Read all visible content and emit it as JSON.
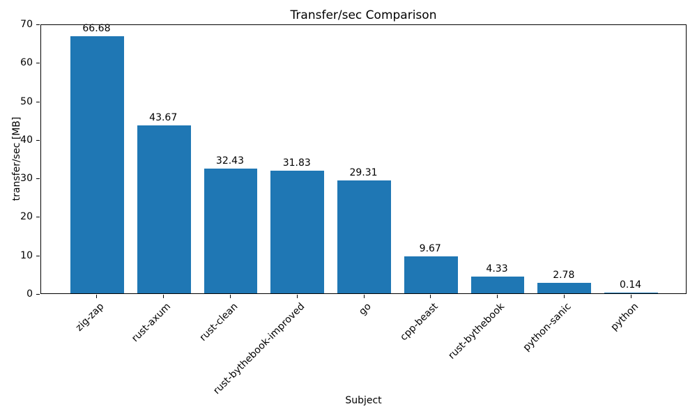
{
  "chart_data": {
    "type": "bar",
    "title": "Transfer/sec Comparison",
    "xlabel": "Subject",
    "ylabel": "transfer/sec [MB]",
    "categories": [
      "zig-zap",
      "rust-axum",
      "rust-clean",
      "rust-bythebook-improved",
      "go",
      "cpp-beast",
      "rust-bythebook",
      "python-sanic",
      "python"
    ],
    "values": [
      66.68,
      43.67,
      32.43,
      31.83,
      29.31,
      9.67,
      4.33,
      2.78,
      0.14
    ],
    "value_labels": [
      "66.68",
      "43.67",
      "32.43",
      "31.83",
      "29.31",
      "9.67",
      "4.33",
      "2.78",
      "0.14"
    ],
    "ylim": [
      0,
      70
    ],
    "yticks": [
      0,
      10,
      20,
      30,
      40,
      50,
      60,
      70
    ],
    "bar_color": "#1f77b4",
    "axis_color": "#000000",
    "grid": false,
    "legend_position": "none"
  }
}
